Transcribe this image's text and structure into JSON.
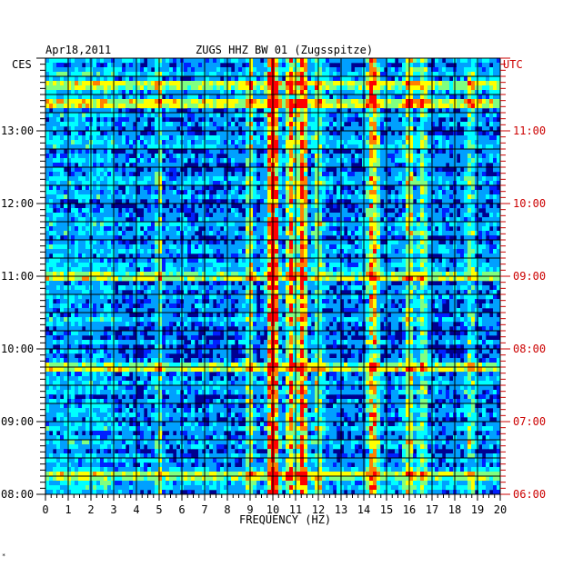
{
  "chart_data": {
    "type": "heatmap",
    "date": "Apr18,2011",
    "title": "ZUGS HHZ BW 01 (Zugsspitze)",
    "left_zone": "CES",
    "right_zone": "UTC",
    "xlabel": "FREQUENCY (HZ)",
    "xlim": [
      0,
      20
    ],
    "x_ticks": [
      "0",
      "1",
      "2",
      "3",
      "4",
      "5",
      "6",
      "7",
      "8",
      "9",
      "10",
      "11",
      "12",
      "13",
      "14",
      "15",
      "16",
      "17",
      "18",
      "19",
      "20"
    ],
    "ylim_hours_ces": [
      8,
      14
    ],
    "y_ticks_left": [
      "08:00",
      "09:00",
      "10:00",
      "11:00",
      "12:00",
      "13:00"
    ],
    "y_ticks_right": [
      "06:00",
      "07:00",
      "08:00",
      "09:00",
      "10:00",
      "11:00"
    ],
    "grid": true,
    "colormap": [
      "#000088",
      "#0000c8",
      "#0020ff",
      "#00a0ff",
      "#00ffff",
      "#80ff80",
      "#ffff00",
      "#ff8000",
      "#ff0000"
    ],
    "background_color": "#000090",
    "tick_color_right": "#cc0000",
    "bright_bands_hz": [
      {
        "center": 10.0,
        "width": 0.35,
        "intensity": 0.85
      },
      {
        "center": 11.3,
        "width": 0.3,
        "intensity": 0.7
      },
      {
        "center": 10.8,
        "width": 0.3,
        "intensity": 0.5
      },
      {
        "center": 9.0,
        "width": 0.25,
        "intensity": 0.35
      },
      {
        "center": 14.4,
        "width": 0.35,
        "intensity": 0.55
      },
      {
        "center": 16.0,
        "width": 0.3,
        "intensity": 0.4
      },
      {
        "center": 12.0,
        "width": 0.3,
        "intensity": 0.3
      },
      {
        "center": 5.0,
        "width": 0.2,
        "intensity": 0.3
      },
      {
        "center": 16.6,
        "width": 0.3,
        "intensity": 0.3
      },
      {
        "center": 18.7,
        "width": 0.3,
        "intensity": 0.25
      }
    ],
    "bright_rows_hours_ces": [
      13.65,
      13.35,
      11.0,
      9.75,
      8.25
    ]
  }
}
